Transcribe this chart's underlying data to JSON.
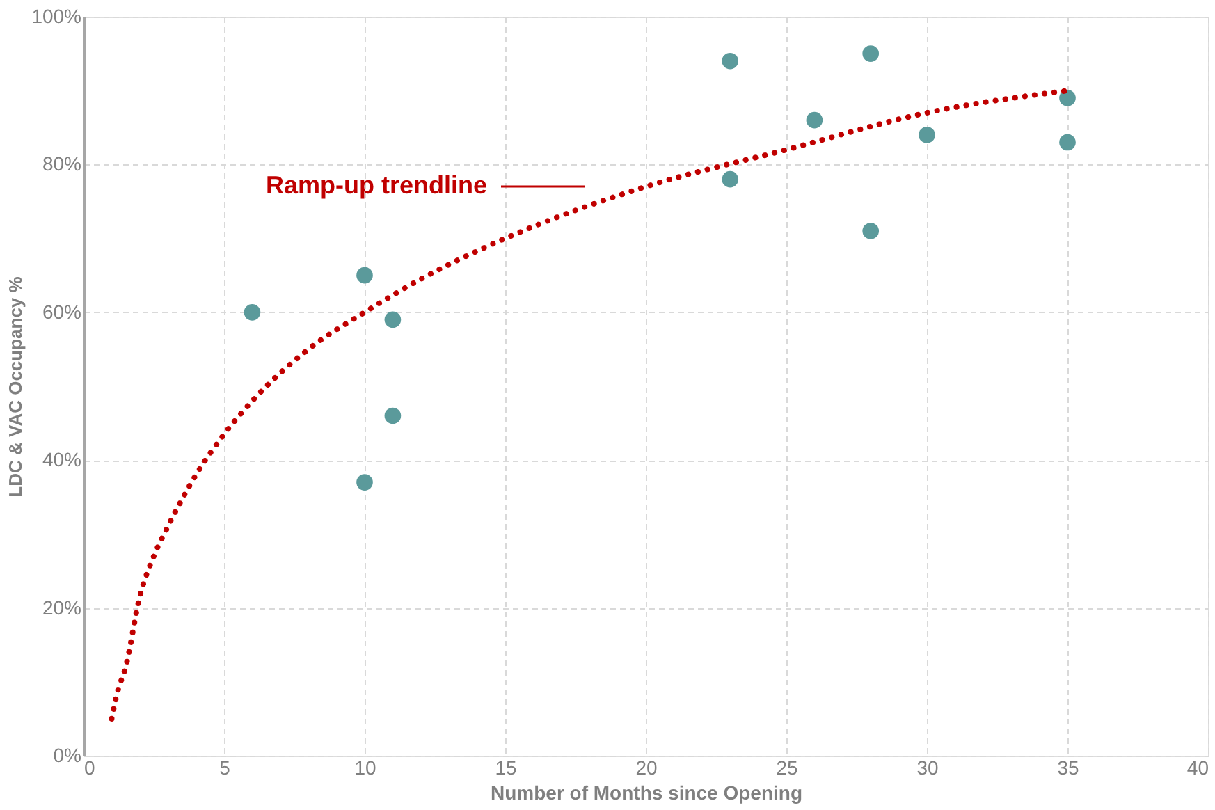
{
  "chart_data": {
    "type": "scatter",
    "xlabel": "Number of Months since Opening",
    "ylabel": "LDC & VAC Occupancy %",
    "series": [
      {
        "color": "#5b9a9b",
        "marker": "circle",
        "x": [
          6,
          10,
          10,
          11,
          11,
          23,
          23,
          26,
          28,
          28,
          30,
          35,
          35
        ],
        "values": [
          60,
          65,
          37,
          59,
          46,
          94,
          78,
          86,
          95,
          71,
          84,
          89,
          83
        ]
      },
      {
        "type": "line",
        "color": "#c00000",
        "line_style": "dotted",
        "marker": "none",
        "x": [
          1,
          1.2,
          1.5,
          2,
          2.5,
          3,
          4,
          5,
          6,
          8,
          10,
          12,
          15,
          20,
          25,
          30,
          35
        ],
        "values": [
          5,
          8.5,
          12,
          21.5,
          27,
          31,
          38,
          43.5,
          48,
          55,
          60,
          64.5,
          70,
          77,
          82,
          87,
          90
        ]
      }
    ],
    "annotations": [
      "Ramp-up trendline"
    ],
    "xlim": [
      0,
      40
    ],
    "xticks": [
      0,
      5,
      10,
      15,
      20,
      25,
      30,
      35,
      40
    ],
    "ylim": [
      0,
      100
    ],
    "yticks": [
      {
        "value": 0,
        "label": "0%"
      },
      {
        "value": 20,
        "label": "20%"
      },
      {
        "value": 40,
        "label": "40%"
      },
      {
        "value": 60,
        "label": "60%"
      },
      {
        "value": 80,
        "label": "80%"
      },
      {
        "value": 100,
        "label": "100%"
      }
    ],
    "grid": true,
    "legend": false
  }
}
